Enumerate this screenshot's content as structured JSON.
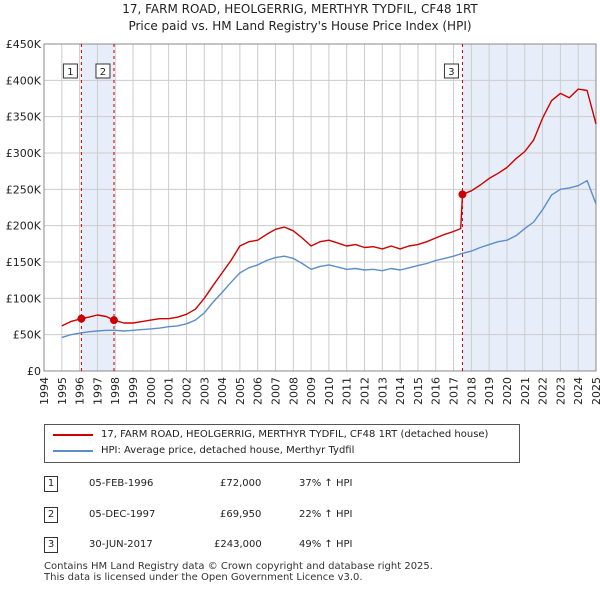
{
  "title_line1": "17, FARM ROAD, HEOLGERRIG, MERTHYR TYDFIL, CF48 1RT",
  "title_line2": "Price paid vs. HM Land Registry's House Price Index (HPI)",
  "colors": {
    "property": "#cc0000",
    "hpi": "#5b8ec9",
    "shade": "#e8eef9",
    "grid": "#cccccc"
  },
  "chart_data": {
    "type": "line",
    "ylim": [
      0,
      450000
    ],
    "yticks": [
      0,
      50000,
      100000,
      150000,
      200000,
      250000,
      300000,
      350000,
      400000,
      450000
    ],
    "ytick_labels": [
      "£0",
      "£50K",
      "£100K",
      "£150K",
      "£200K",
      "£250K",
      "£300K",
      "£350K",
      "£400K",
      "£450K"
    ],
    "xlim": [
      1994,
      2025
    ],
    "xticks": [
      "1994",
      "1995",
      "1996",
      "1997",
      "1998",
      "1999",
      "2000",
      "2001",
      "2002",
      "2003",
      "2004",
      "2005",
      "2006",
      "2007",
      "2008",
      "2009",
      "2010",
      "2011",
      "2012",
      "2013",
      "2014",
      "2015",
      "2016",
      "2017",
      "2018",
      "2019",
      "2020",
      "2021",
      "2022",
      "2023",
      "2024",
      "2025"
    ],
    "shaded_periods": [
      [
        1996.1,
        1997.93
      ],
      [
        2017.5,
        2025
      ]
    ],
    "series": [
      {
        "name": "17, FARM ROAD, HEOLGERRIG, MERTHYR TYDFIL, CF48 1RT (detached house)",
        "color": "#cc0000",
        "x": [
          1995.0,
          1995.5,
          1996.1,
          1996.5,
          1997.0,
          1997.5,
          1997.93,
          1998.5,
          1999.0,
          1999.5,
          2000.0,
          2000.5,
          2001.0,
          2001.5,
          2002.0,
          2002.5,
          2003.0,
          2003.5,
          2004.0,
          2004.5,
          2005.0,
          2005.5,
          2006.0,
          2006.5,
          2007.0,
          2007.5,
          2008.0,
          2008.5,
          2009.0,
          2009.5,
          2010.0,
          2010.5,
          2011.0,
          2011.5,
          2012.0,
          2012.5,
          2013.0,
          2013.5,
          2014.0,
          2014.5,
          2015.0,
          2015.5,
          2016.0,
          2016.5,
          2017.0,
          2017.4,
          2017.5,
          2018.0,
          2018.5,
          2019.0,
          2019.5,
          2020.0,
          2020.5,
          2021.0,
          2021.5,
          2022.0,
          2022.5,
          2023.0,
          2023.5,
          2024.0,
          2024.5,
          2025.0
        ],
        "values": [
          62000,
          68000,
          72000,
          74000,
          77000,
          75000,
          69950,
          66000,
          66000,
          68000,
          70000,
          72000,
          72000,
          74000,
          78000,
          85000,
          100000,
          118000,
          135000,
          152000,
          172000,
          178000,
          180000,
          188000,
          195000,
          198000,
          193000,
          183000,
          172000,
          178000,
          180000,
          176000,
          172000,
          174000,
          170000,
          171000,
          168000,
          172000,
          168000,
          172000,
          174000,
          178000,
          183000,
          188000,
          192000,
          196000,
          243000,
          248000,
          256000,
          265000,
          272000,
          280000,
          292000,
          302000,
          318000,
          348000,
          372000,
          382000,
          376000,
          388000,
          386000,
          340000
        ]
      },
      {
        "name": "HPI: Average price, detached house, Merthyr Tydfil",
        "color": "#5b8ec9",
        "x": [
          1995.0,
          1995.5,
          1996.0,
          1996.5,
          1997.0,
          1997.5,
          1998.0,
          1998.5,
          1999.0,
          1999.5,
          2000.0,
          2000.5,
          2001.0,
          2001.5,
          2002.0,
          2002.5,
          2003.0,
          2003.5,
          2004.0,
          2004.5,
          2005.0,
          2005.5,
          2006.0,
          2006.5,
          2007.0,
          2007.5,
          2008.0,
          2008.5,
          2009.0,
          2009.5,
          2010.0,
          2010.5,
          2011.0,
          2011.5,
          2012.0,
          2012.5,
          2013.0,
          2013.5,
          2014.0,
          2014.5,
          2015.0,
          2015.5,
          2016.0,
          2016.5,
          2017.0,
          2017.5,
          2018.0,
          2018.5,
          2019.0,
          2019.5,
          2020.0,
          2020.5,
          2021.0,
          2021.5,
          2022.0,
          2022.5,
          2023.0,
          2023.5,
          2024.0,
          2024.5,
          2025.0
        ],
        "values": [
          46000,
          50000,
          52000,
          54000,
          55000,
          56000,
          56000,
          55000,
          56000,
          57000,
          58000,
          59000,
          61000,
          62000,
          65000,
          70000,
          80000,
          95000,
          108000,
          122000,
          135000,
          142000,
          146000,
          152000,
          156000,
          158000,
          155000,
          148000,
          140000,
          144000,
          146000,
          143000,
          140000,
          141000,
          139000,
          140000,
          138000,
          141000,
          139000,
          142000,
          145000,
          148000,
          152000,
          155000,
          158000,
          162000,
          165000,
          170000,
          174000,
          178000,
          180000,
          186000,
          196000,
          205000,
          222000,
          242000,
          250000,
          252000,
          255000,
          262000,
          230000
        ]
      }
    ],
    "sales": [
      {
        "label": "1",
        "x": 1996.1,
        "value": 72000
      },
      {
        "label": "2",
        "x": 1997.93,
        "value": 69950
      },
      {
        "label": "3",
        "x": 2017.5,
        "value": 243000
      }
    ]
  },
  "legend": {
    "property": "17, FARM ROAD, HEOLGERRIG, MERTHYR TYDFIL, CF48 1RT (detached house)",
    "hpi": "HPI: Average price, detached house, Merthyr Tydfil"
  },
  "transactions": [
    {
      "num": "1",
      "date": "05-FEB-1996",
      "price": "£72,000",
      "hpi": "37% ↑ HPI"
    },
    {
      "num": "2",
      "date": "05-DEC-1997",
      "price": "£69,950",
      "hpi": "22% ↑ HPI"
    },
    {
      "num": "3",
      "date": "30-JUN-2017",
      "price": "£243,000",
      "hpi": "49% ↑ HPI"
    }
  ],
  "footer": {
    "line1": "Contains HM Land Registry data © Crown copyright and database right 2025.",
    "line2": "This data is licensed under the Open Government Licence v3.0."
  }
}
